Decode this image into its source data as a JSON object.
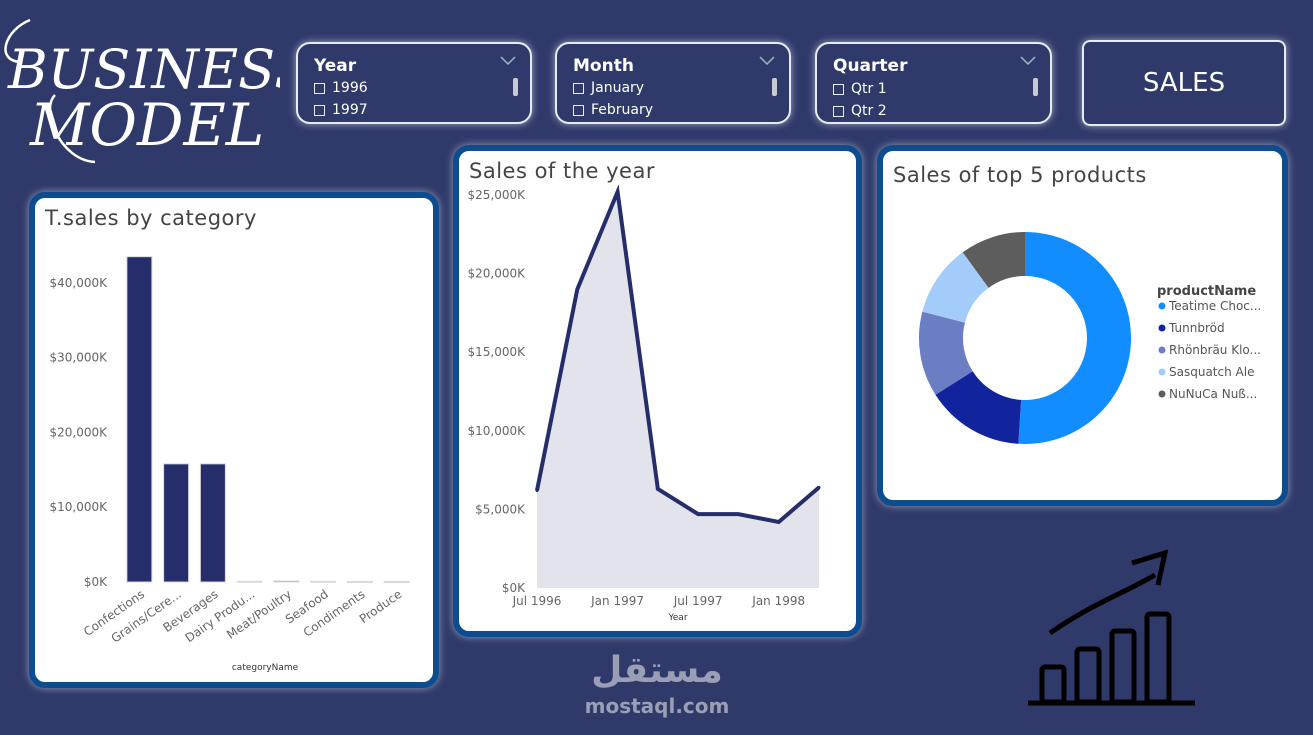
{
  "logo": {
    "line1": "BUSINESS",
    "line2": "MODEL"
  },
  "slicers": [
    {
      "title": "Year",
      "items": [
        "1996",
        "1997"
      ]
    },
    {
      "title": "Month",
      "items": [
        "January",
        "February"
      ]
    },
    {
      "title": "Quarter",
      "items": [
        "Qtr 1",
        "Qtr 2"
      ]
    }
  ],
  "sales_label": "SALES",
  "watermark": {
    "arabic": "مستقل",
    "latin": "mostaql.com"
  },
  "chart_data": [
    {
      "type": "bar",
      "title": "T.sales by category",
      "xlabel": "categoryName",
      "ylabel": "",
      "categories": [
        "Confections",
        "Grains/Cere...",
        "Beverages",
        "Dairy Produ...",
        "Meat/Poultry",
        "Seafood",
        "Condiments",
        "Produce"
      ],
      "values": [
        43500,
        15800,
        15800,
        100,
        150,
        100,
        80,
        60
      ],
      "ylim": [
        0,
        46000
      ],
      "yticks": [
        0,
        10000,
        20000,
        30000,
        40000
      ],
      "ytick_labels": [
        "$0K",
        "$10,000K",
        "$20,000K",
        "$30,000K",
        "$40,000K"
      ],
      "color": "#252d6b"
    },
    {
      "type": "area",
      "title": "Sales of the year",
      "xlabel": "Year",
      "ylabel": "",
      "x": [
        "1996-07",
        "1996-10",
        "1997-01",
        "1997-04",
        "1997-07",
        "1997-10",
        "1998-01",
        "1998-04"
      ],
      "values": [
        6200,
        19000,
        25200,
        6300,
        4700,
        4700,
        4200,
        6400
      ],
      "ylim": [
        0,
        25000
      ],
      "yticks": [
        0,
        5000,
        10000,
        15000,
        20000,
        25000
      ],
      "ytick_labels": [
        "$0K",
        "$5,000K",
        "$10,000K",
        "$15,000K",
        "$20,000K",
        "$25,000K"
      ],
      "xtick_labels": [
        "Jul 1996",
        "Jan 1997",
        "Jul 1997",
        "Jan 1998"
      ],
      "line_color": "#252d6b",
      "fill_color": "#e3e3ec"
    },
    {
      "type": "pie",
      "title": "Sales of top 5 products",
      "legend_title": "productName",
      "legend_position": "right",
      "labels": [
        "Teatime Choc...",
        "Tunnbröd",
        "Rhönbräu Klo...",
        "Sasquatch Ale",
        "NuNuCa Nuß..."
      ],
      "values": [
        51,
        15,
        13,
        11,
        10
      ],
      "colors": [
        "#118dff",
        "#12239e",
        "#6b7ec4",
        "#a3ccfb",
        "#5d5d5d"
      ]
    }
  ]
}
